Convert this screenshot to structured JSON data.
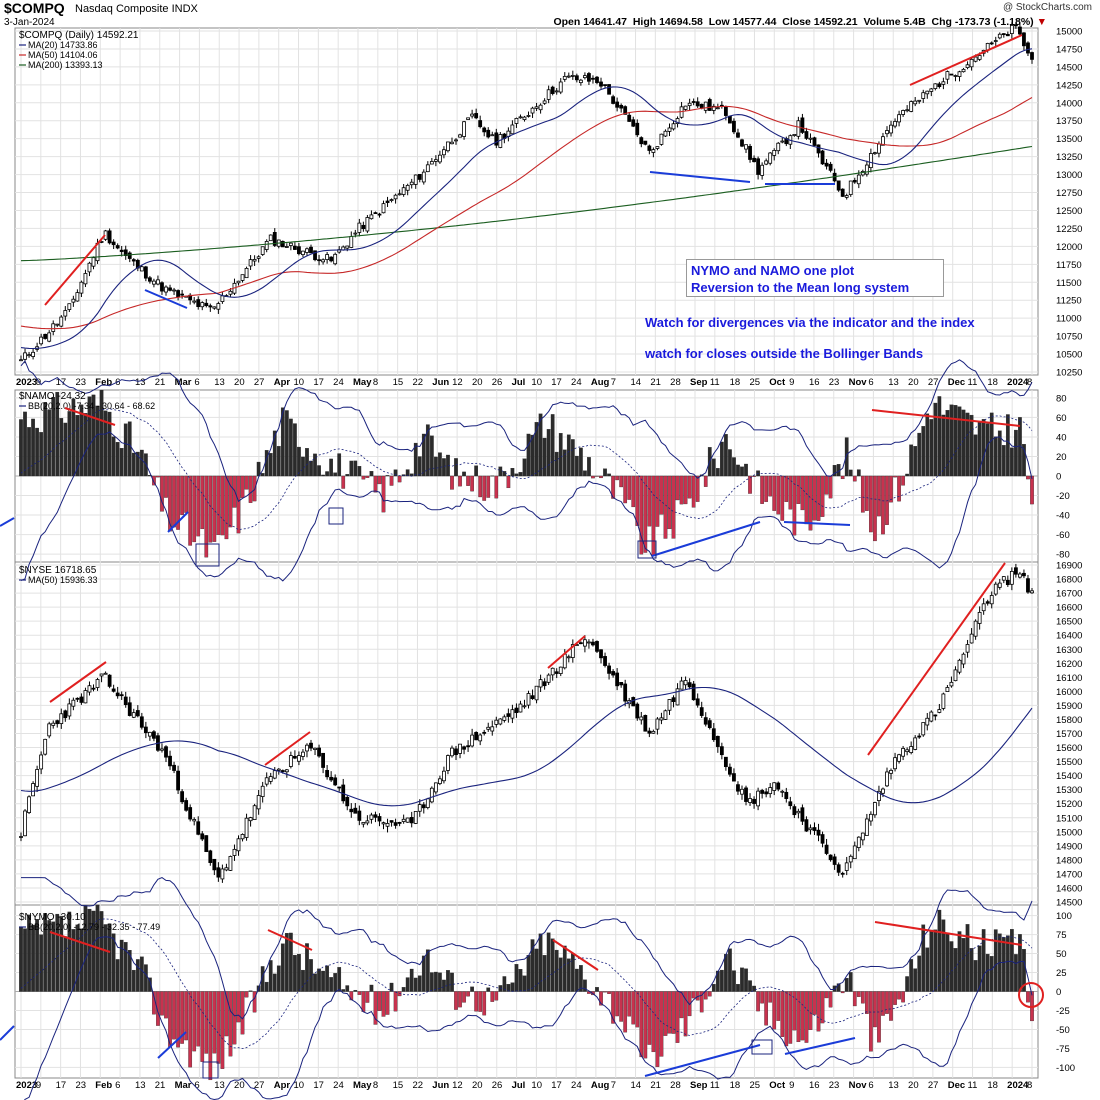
{
  "header": {
    "symbol": "$COMPQ",
    "description": "Nasdaq Composite INDX",
    "date": "3-Jan-2024",
    "watermark": "@ StockCharts.com",
    "ohlc": {
      "open": "Open 14641.47",
      "high": "High 14694.58",
      "low": "Low 14577.44",
      "close": "Close 14592.21",
      "volume": "Volume 5.4B",
      "change": "Chg -173.73 (-1.18%)"
    }
  },
  "annotations": {
    "note_line1": "NYMO and NAMO one plot",
    "note_line2": "Reversion to the Mean long system",
    "text1": "Watch for divergences via the indicator and the index",
    "text2": "watch for closes outside the Bollinger Bands"
  },
  "colors": {
    "up": "#000000",
    "pos_hist": "#2b2b2b",
    "neg_hist": "#c8324e",
    "ma_blue": "#1a237e",
    "ma_red": "#c62828",
    "ma_green": "#1b5e20",
    "ann_red": "#e02020",
    "ann_blue": "#1a3cd8",
    "grid": "#e2e2e2"
  },
  "chart_data": [
    {
      "type": "candlestick",
      "title": "$COMPQ (Daily) 14592.21",
      "legend": [
        "$COMPQ (Daily) 14592.21",
        "MA(20) 14733.86",
        "MA(50) 14104.06",
        "MA(200) 13393.13"
      ],
      "ylim": [
        10250,
        15000
      ],
      "yticks": [
        10250,
        10500,
        10750,
        11000,
        11250,
        11500,
        11750,
        12000,
        12250,
        12500,
        12750,
        13000,
        13250,
        13500,
        13750,
        14000,
        14250,
        14500,
        14750,
        15000
      ],
      "x_keypoints": [
        [
          "2023-01-03",
          10400
        ],
        [
          "2023-01-20",
          11100
        ],
        [
          "2023-02-02",
          12200
        ],
        [
          "2023-02-10",
          11850
        ],
        [
          "2023-02-24",
          11400
        ],
        [
          "2023-03-13",
          11100
        ],
        [
          "2023-04-03",
          12100
        ],
        [
          "2023-04-25",
          11800
        ],
        [
          "2023-05-05",
          12250
        ],
        [
          "2023-05-26",
          12950
        ],
        [
          "2023-06-15",
          13800
        ],
        [
          "2023-06-23",
          13450
        ],
        [
          "2023-07-19",
          14350
        ],
        [
          "2023-07-31",
          14300
        ],
        [
          "2023-08-18",
          13300
        ],
        [
          "2023-08-31",
          14000
        ],
        [
          "2023-09-14",
          13900
        ],
        [
          "2023-09-26",
          13050
        ],
        [
          "2023-10-11",
          13700
        ],
        [
          "2023-10-27",
          12700
        ],
        [
          "2023-11-14",
          13750
        ],
        [
          "2023-12-01",
          14300
        ],
        [
          "2023-12-28",
          15050
        ],
        [
          "2024-01-03",
          14592
        ]
      ],
      "series_summary": {
        "MA20_last": 14733.86,
        "MA50_last": 14104.06,
        "MA200_last": 13393.13
      }
    },
    {
      "type": "bar",
      "title": "$NAMO -24.32",
      "legend": [
        "$NAMO -24.32",
        "BB(20,2.0) -7.34 - 30.64 - 68.62"
      ],
      "ylim": [
        -85,
        85
      ],
      "yticks": [
        -80,
        -60,
        -40,
        -20,
        0,
        20,
        40,
        60,
        80
      ]
    },
    {
      "type": "candlestick",
      "title": "$NYSE 16718.65",
      "legend": [
        "$NYSE 16718.65",
        "MA(50) 15936.33"
      ],
      "ylim": [
        14500,
        16900
      ],
      "yticks": [
        14500,
        14600,
        14700,
        14800,
        14900,
        15000,
        15100,
        15200,
        15300,
        15400,
        15500,
        15600,
        15700,
        15800,
        15900,
        16000,
        16100,
        16200,
        16300,
        16400,
        16500,
        16600,
        16700,
        16800,
        16900
      ],
      "x_keypoints": [
        [
          "2023-01-03",
          15000
        ],
        [
          "2023-01-13",
          15750
        ],
        [
          "2023-02-02",
          16100
        ],
        [
          "2023-02-24",
          15550
        ],
        [
          "2023-03-15",
          14650
        ],
        [
          "2023-04-03",
          15400
        ],
        [
          "2023-04-18",
          15600
        ],
        [
          "2023-05-04",
          15100
        ],
        [
          "2023-05-24",
          15050
        ],
        [
          "2023-06-07",
          15550
        ],
        [
          "2023-07-03",
          15900
        ],
        [
          "2023-07-26",
          16400
        ],
        [
          "2023-08-18",
          15700
        ],
        [
          "2023-08-31",
          16100
        ],
        [
          "2023-09-22",
          15200
        ],
        [
          "2023-10-02",
          15350
        ],
        [
          "2023-10-27",
          14700
        ],
        [
          "2023-11-14",
          15500
        ],
        [
          "2023-12-01",
          15900
        ],
        [
          "2023-12-19",
          16700
        ],
        [
          "2023-12-28",
          16850
        ],
        [
          "2024-01-03",
          16718
        ]
      ]
    },
    {
      "type": "bar",
      "title": "$NYMO -30.10",
      "legend": [
        "$NYMO -30.10",
        "BB(20,2.0) -12.79 - 32.35 - 77.49"
      ],
      "ylim": [
        -110,
        110
      ],
      "yticks": [
        -100,
        -75,
        -50,
        -25,
        0,
        25,
        50,
        75,
        100
      ]
    }
  ],
  "x_axis_labels": [
    "2023",
    "9",
    "17",
    "23",
    "Feb",
    "6",
    "13",
    "21",
    "Mar",
    "6",
    "13",
    "20",
    "27",
    "Apr",
    "10",
    "17",
    "24",
    "May",
    "8",
    "15",
    "22",
    "Jun",
    "12",
    "20",
    "26",
    "Jul",
    "10",
    "17",
    "24",
    "Aug",
    "7",
    "14",
    "21",
    "28",
    "Sep",
    "11",
    "18",
    "25",
    "Oct",
    "9",
    "16",
    "23",
    "Nov",
    "6",
    "13",
    "20",
    "27",
    "Dec",
    "11",
    "18",
    "2024",
    "8"
  ]
}
